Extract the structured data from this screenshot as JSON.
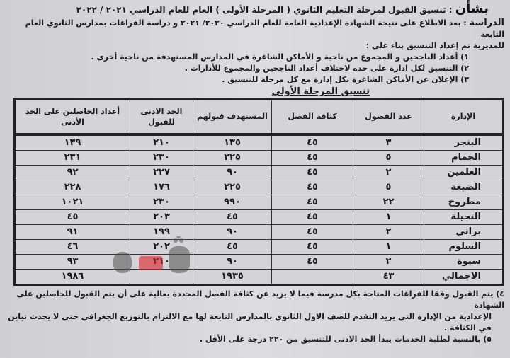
{
  "header": {
    "subject_label": "بشأن",
    "subject_text": ": تنسيق القبول لمرحلة التعليم الثانوي ( المرحلة الأولى ) العام للعام الدراسي ٢٠٢١ / ٢٠٢٢",
    "study_label": "الدراسة",
    "study_text": ": بعد الاطلاع على نتيجة الشهادة الإعدادية العامة للعام الدراسي ٢٠٢٠/ ٢٠٢١ و دراسة الفراغات بمدارس الثانوي العام التابعة",
    "line3": "للمديرية تم إعداد التنسيق بناء على :",
    "items": [
      "١)  أعداد الناجحين و المجموع من ناحية و الأماكن الشاغرة في المدارس المستهدفة من ناحية أخرى .",
      "٢)  التنسيق لكل ادارة على حده لاختلاف أعداد الناجحين والمجموع للأدارات .",
      "٣)  الإعلان عن الأماكن الشاغرة بكل إدارة مع كل مرحلة للتنسيق ."
    ]
  },
  "table": {
    "title": "تنسيق المرحلة الأولى",
    "columns": [
      "الإدارة",
      "عدد الفصول",
      "كثافة الفصل",
      "المستهدف قبولهم",
      "الحد الادنى للقبول",
      "أعداد الحاصلين على الحد الأدنى"
    ],
    "rows": [
      [
        "البنجر",
        "٣",
        "٤٥",
        "١٣٥",
        "٢١٠",
        "١٣٩"
      ],
      [
        "الحمام",
        "٥",
        "٤٥",
        "٢٢٥",
        "٢٣٠",
        "٢٣١"
      ],
      [
        "العلمين",
        "٢",
        "٤٥",
        "٩٠",
        "٢٢٧",
        "٩٢"
      ],
      [
        "الضبعة",
        "٥",
        "٤٥",
        "٢٢٥",
        "١٧٦",
        "٢٢٨"
      ],
      [
        "مطروح",
        "٢٢",
        "٤٥",
        "٩٩٠",
        "٢٣٠",
        "١٠٢١"
      ],
      [
        "النجيلة",
        "١",
        "٤٥",
        "٤٥",
        "٢٠٣",
        "٤٥"
      ],
      [
        "براني",
        "٢",
        "٤٥",
        "٩٠",
        "١٩٩",
        "٩١"
      ],
      [
        "السلوم",
        "١",
        "٤٥",
        "٤٥",
        "٢٠٢",
        "٤٦"
      ],
      [
        "سيوة",
        "٢",
        "٤٥",
        "٩٠",
        "٢١٠",
        "٩٣"
      ],
      [
        "الاجمالي",
        "٤٣",
        "",
        "١٩٣٥",
        "",
        "١٩٨٦"
      ]
    ]
  },
  "watermark": "ڤيتو",
  "notes": [
    "٤)  يتم القبول وفقا للفراغات المتاحة بكل مدرسة فيما لا يزيد عن كثافة الفصل المحددة بعالية على أن يتم القبول للحاصلين على الشهادة",
    "الإعدادية من الإدارة التي يريد التقدم للصف الاول الثانوى بالمدارس التابعة لها مع الالتزام بالتوزيع الجغرافي حتى لا يحدث تباين في الكثافة .",
    "٥)  بالنسبة لطلبة الخدمات يبدأ الحد الادنى للتنسيق من ٢٢٠ درجة على الأقل ."
  ]
}
